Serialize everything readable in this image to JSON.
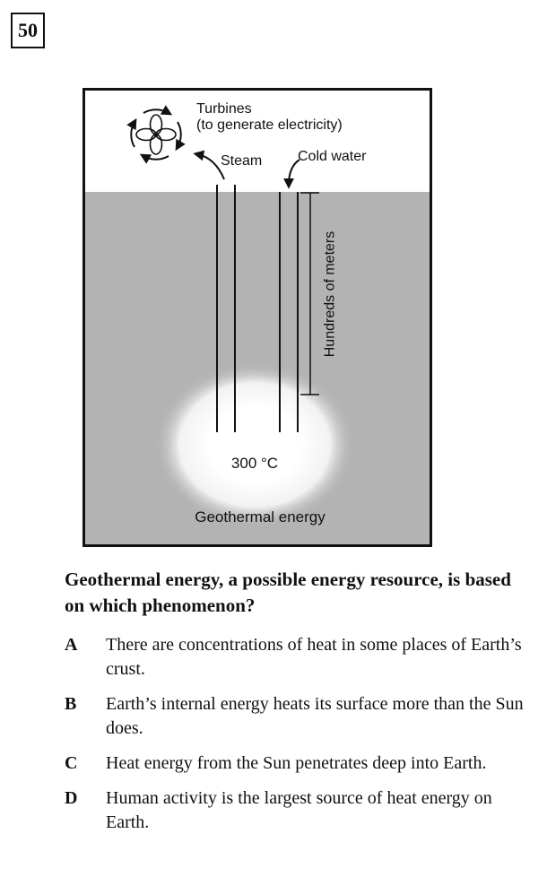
{
  "question_number": "50",
  "figure": {
    "turbines_label": "Turbines",
    "turbines_sub": "(to generate electricity)",
    "steam_label": "Steam",
    "cold_water_label": "Cold water",
    "depth_label": "Hundreds of meters",
    "temperature_label": "300 °C",
    "energy_label": "Geothermal energy"
  },
  "question_text": "Geothermal energy, a possible energy resource, is based on which phenomenon?",
  "choices": [
    {
      "letter": "A",
      "text": "There are concentrations of heat in some places of Earth’s crust."
    },
    {
      "letter": "B",
      "text": "Earth’s internal energy heats its surface more than the Sun does."
    },
    {
      "letter": "C",
      "text": "Heat energy from the Sun penetrates deep into Earth."
    },
    {
      "letter": "D",
      "text": "Human activity is the largest source of heat energy on Earth."
    }
  ]
}
